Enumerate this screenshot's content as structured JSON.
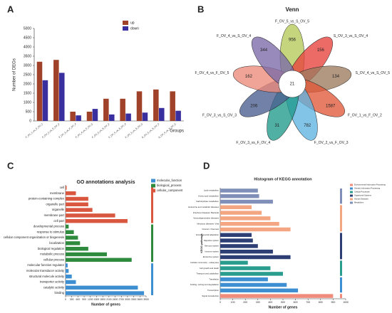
{
  "chart_data": [
    {
      "panel": "A",
      "type": "bar",
      "ylabel": "Number of DEGs",
      "xlabel": "Groups",
      "categories": [
        "F_OV_1_vs_F_OV_2",
        "F_OV_2_vs_F_OV_3",
        "F_OV_3_vs_F_OV_4",
        "F_OV_4_vs_F_OV_5",
        "F_OV_3_vs_S_OV_3",
        "F_OV_4_vs_S_OV_4",
        "F_OV_5_vs_S_OV_5",
        "S_OV_3_vs_S_OV_4",
        "S_OV_4_vs_S_OV_5"
      ],
      "series": [
        {
          "name": "up",
          "color": "#a0422a",
          "values": [
            3200,
            3300,
            500,
            500,
            1200,
            1200,
            1600,
            1700,
            1600
          ]
        },
        {
          "name": "down",
          "color": "#3a2f9e",
          "values": [
            2200,
            2600,
            300,
            650,
            350,
            400,
            450,
            700,
            550
          ]
        }
      ],
      "ylim": [
        0,
        5000
      ],
      "yticks": [
        0,
        500,
        1000,
        1500,
        2000,
        2500,
        3000,
        3500,
        4000,
        4500,
        5000
      ],
      "legend": "upper right"
    },
    {
      "panel": "B",
      "type": "venn",
      "title": "Venn",
      "sets": [
        {
          "name": "F_OV_5_vs_S_OV_5",
          "color": "#b5c95a",
          "value": 956
        },
        {
          "name": "S_OV_3_vs_S_OV_4",
          "color": "#e8413c",
          "value": 156
        },
        {
          "name": "S_OV_4_vs_S_OV_5",
          "color": "#9c7a5e",
          "value": 134
        },
        {
          "name": "F_OV_1_vs_F_OV_2",
          "color": "#e2583a",
          "value": 1587
        },
        {
          "name": "F_OV_2_vs_F_OV_3",
          "color": "#5fb3e0",
          "value": 782
        },
        {
          "name": "F_OV_3_vs_F_OV_4",
          "color": "#1f9a8a",
          "value": 31
        },
        {
          "name": "F_OV_3_vs_S_OV_3",
          "color": "#4a5e8f",
          "value": 206
        },
        {
          "name": "F_OV_4_vs_F_OV_5",
          "color": "#ec8a7a",
          "value": 162
        },
        {
          "name": "F_OV_4_vs_S_OV_4",
          "color": "#7b6aa8",
          "value": 344
        }
      ],
      "center": 21
    },
    {
      "panel": "C",
      "type": "hbar",
      "title": "GO annotations analysis",
      "xlabel": "Number of genes",
      "xlim": [
        0,
        3900
      ],
      "xticks": [
        0,
        300,
        600,
        900,
        1200,
        1500,
        1800,
        2100,
        2400,
        2700,
        3000,
        3300,
        3600,
        3900
      ],
      "series": [
        {
          "name": "molecular_function",
          "color": "#3d8fd1",
          "categories": [
            "molecular function regulator",
            "molecular transducer activity",
            "structural molecule activity",
            "transporter activity",
            "catalytic activity",
            "binding"
          ],
          "values": [
            100,
            150,
            300,
            500,
            3500,
            3800
          ]
        },
        {
          "name": "biological_process",
          "color": "#2e8b3e",
          "categories": [
            "developmental process",
            "response to stimulus",
            "cellular component organization or biogenesis",
            "localization",
            "biological regulation",
            "metabolic process",
            "cellular process"
          ],
          "values": [
            150,
            400,
            600,
            700,
            1100,
            2000,
            3200
          ]
        },
        {
          "name": "cellular_component",
          "color": "#d9573f",
          "categories": [
            "cell",
            "membrane",
            "protein-containing complex",
            "organelle part",
            "organelle",
            "membrane part",
            "cell part"
          ],
          "values": [
            50,
            500,
            1100,
            1100,
            1300,
            2400,
            3000
          ]
        }
      ]
    },
    {
      "panel": "D",
      "type": "hbar",
      "title": "Histogram of KEGG annotation",
      "xlabel": "Number of genes",
      "ylabel": "KEGG pathways",
      "xlim": [
        0,
        1000
      ],
      "xticks": [
        0,
        100,
        200,
        300,
        400,
        500,
        600,
        700,
        800,
        900,
        1000
      ],
      "series": [
        {
          "name": "Environmental Information Processing",
          "color": "#f08c7c",
          "categories": [
            "Signal transduction"
          ],
          "values": [
            900
          ]
        },
        {
          "name": "Genetic Information Processing",
          "color": "#3d8fd1",
          "categories": [
            "Translation",
            "Folding, sorting and degradation",
            "Transcription"
          ],
          "values": [
            380,
            530,
            620
          ]
        },
        {
          "name": "Cellular Processes",
          "color": "#2a9d8f",
          "categories": [
            "Cellular community - eukaryotes",
            "Cell growth and death",
            "Transport and catabolism"
          ],
          "values": [
            220,
            400,
            500
          ]
        },
        {
          "name": "Organismal Systems",
          "color": "#2c3e73",
          "categories": [
            "Environmental adaptation",
            "Digestive system",
            "Nervous system",
            "Immune system",
            "Endocrine system"
          ],
          "values": [
            250,
            260,
            300,
            420,
            560
          ]
        },
        {
          "name": "Human Diseases",
          "color": "#f4a582",
          "categories": [
            "Endocrine and metabolic diseases",
            "Infectious diseases: Bacterial",
            "Neurodegenerative diseases",
            "Infectious diseases: Viral",
            "Cancers: Overview"
          ],
          "values": [
            250,
            330,
            400,
            470,
            560
          ]
        },
        {
          "name": "Metabolism",
          "color": "#7f8fb8",
          "categories": [
            "Lipid metabolism",
            "Amino acid metabolism",
            "Carbohydrate metabolism"
          ],
          "values": [
            300,
            310,
            420
          ]
        }
      ]
    }
  ]
}
